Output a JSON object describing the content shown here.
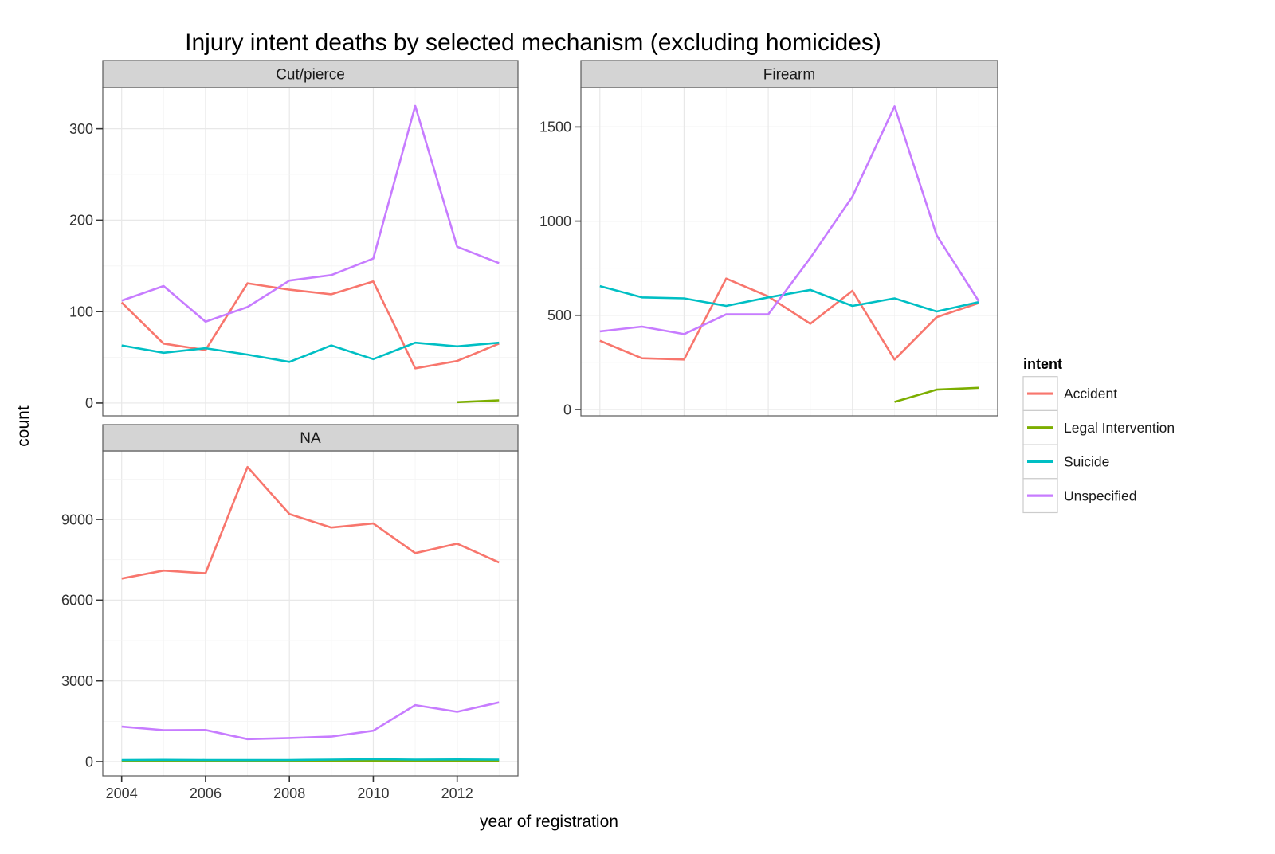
{
  "title": "Injury intent deaths by selected mechanism (excluding homicides)",
  "axes": {
    "x_label": "year of registration",
    "y_label": "count"
  },
  "legend": {
    "title": "intent",
    "entries": [
      {
        "label": "Accident",
        "color": "#F8766D"
      },
      {
        "label": "Legal Intervention",
        "color": "#7CAE00"
      },
      {
        "label": "Suicide",
        "color": "#00BFC4"
      },
      {
        "label": "Unspecified",
        "color": "#C77CFF"
      }
    ]
  },
  "style_colors": {
    "strip_fill": "#D4D4D4",
    "panel_border": "#595959",
    "grid_major": "#E8E8E8",
    "grid_minor": "#F4F4F4",
    "tick_mark": "#333333"
  },
  "chart_data": [
    {
      "type": "line",
      "facet": "Cut/pierce",
      "x": [
        2004,
        2005,
        2006,
        2007,
        2008,
        2009,
        2010,
        2011,
        2012,
        2013
      ],
      "xticks": [
        2004,
        2006,
        2008,
        2010,
        2012
      ],
      "yticks": [
        0,
        100,
        200,
        300
      ],
      "ylim": [
        -14,
        345
      ],
      "xlim": [
        2003.55,
        2013.45
      ],
      "grid": true,
      "series": [
        {
          "name": "Accident",
          "values": [
            110,
            65,
            58,
            131,
            124,
            119,
            133,
            38,
            46,
            65
          ]
        },
        {
          "name": "Legal Intervention",
          "values": [
            null,
            null,
            null,
            null,
            null,
            null,
            null,
            null,
            1,
            3
          ]
        },
        {
          "name": "Suicide",
          "values": [
            63,
            55,
            60,
            53,
            45,
            63,
            48,
            66,
            62,
            66
          ]
        },
        {
          "name": "Unspecified",
          "values": [
            112,
            128,
            89,
            105,
            134,
            140,
            158,
            325,
            171,
            153
          ]
        }
      ]
    },
    {
      "type": "line",
      "facet": "Firearm",
      "x": [
        2004,
        2005,
        2006,
        2007,
        2008,
        2009,
        2010,
        2011,
        2012,
        2013
      ],
      "xticks": [
        2004,
        2006,
        2008,
        2010,
        2012
      ],
      "yticks": [
        0,
        500,
        1000,
        1500
      ],
      "ylim": [
        -34,
        1709
      ],
      "xlim": [
        2003.55,
        2013.45
      ],
      "grid": true,
      "series": [
        {
          "name": "Accident",
          "values": [
            365,
            272,
            265,
            695,
            600,
            455,
            630,
            265,
            490,
            565
          ]
        },
        {
          "name": "Legal Intervention",
          "values": [
            null,
            null,
            null,
            null,
            null,
            null,
            null,
            40,
            105,
            115
          ]
        },
        {
          "name": "Suicide",
          "values": [
            655,
            595,
            590,
            550,
            595,
            635,
            550,
            590,
            520,
            570
          ]
        },
        {
          "name": "Unspecified",
          "values": [
            415,
            440,
            400,
            505,
            505,
            805,
            1130,
            1610,
            925,
            575
          ]
        }
      ]
    },
    {
      "type": "line",
      "facet": "NA",
      "x": [
        2004,
        2005,
        2006,
        2007,
        2008,
        2009,
        2010,
        2011,
        2012,
        2013
      ],
      "xticks": [
        2004,
        2006,
        2008,
        2010,
        2012
      ],
      "yticks": [
        0,
        3000,
        6000,
        9000
      ],
      "ylim": [
        -533,
        11548
      ],
      "xlim": [
        2003.55,
        2013.45
      ],
      "grid": true,
      "series": [
        {
          "name": "Accident",
          "values": [
            6800,
            7100,
            7000,
            10950,
            9200,
            8700,
            8850,
            7750,
            8100,
            7400
          ]
        },
        {
          "name": "Legal Intervention",
          "values": [
            20,
            40,
            25,
            20,
            20,
            25,
            30,
            25,
            20,
            25
          ]
        },
        {
          "name": "Suicide",
          "values": [
            60,
            65,
            60,
            55,
            60,
            75,
            90,
            75,
            80,
            75
          ]
        },
        {
          "name": "Unspecified",
          "values": [
            1300,
            1170,
            1175,
            835,
            875,
            930,
            1150,
            2100,
            1850,
            2200
          ]
        }
      ]
    }
  ]
}
